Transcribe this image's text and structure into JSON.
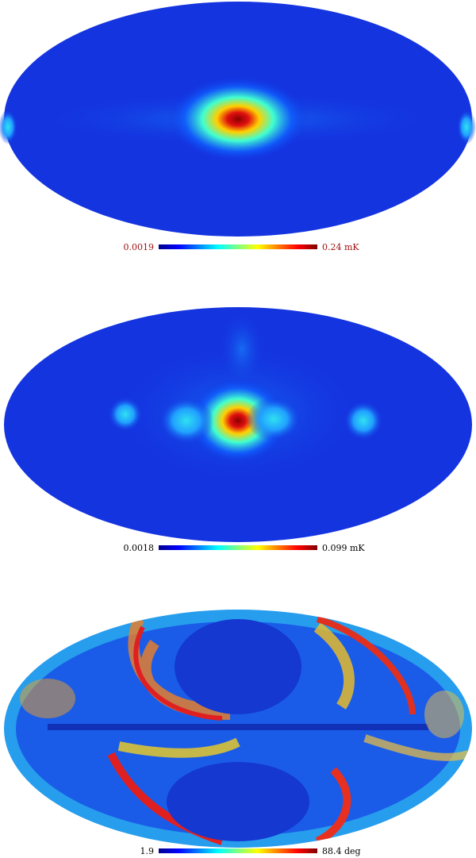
{
  "maps": [
    {
      "min_label": "0.0019",
      "max_label": "0.24 mK"
    },
    {
      "min_label": "0.0018",
      "max_label": "0.099 mK"
    },
    {
      "min_label": "1.9",
      "max_label": "88.4 deg"
    }
  ]
}
